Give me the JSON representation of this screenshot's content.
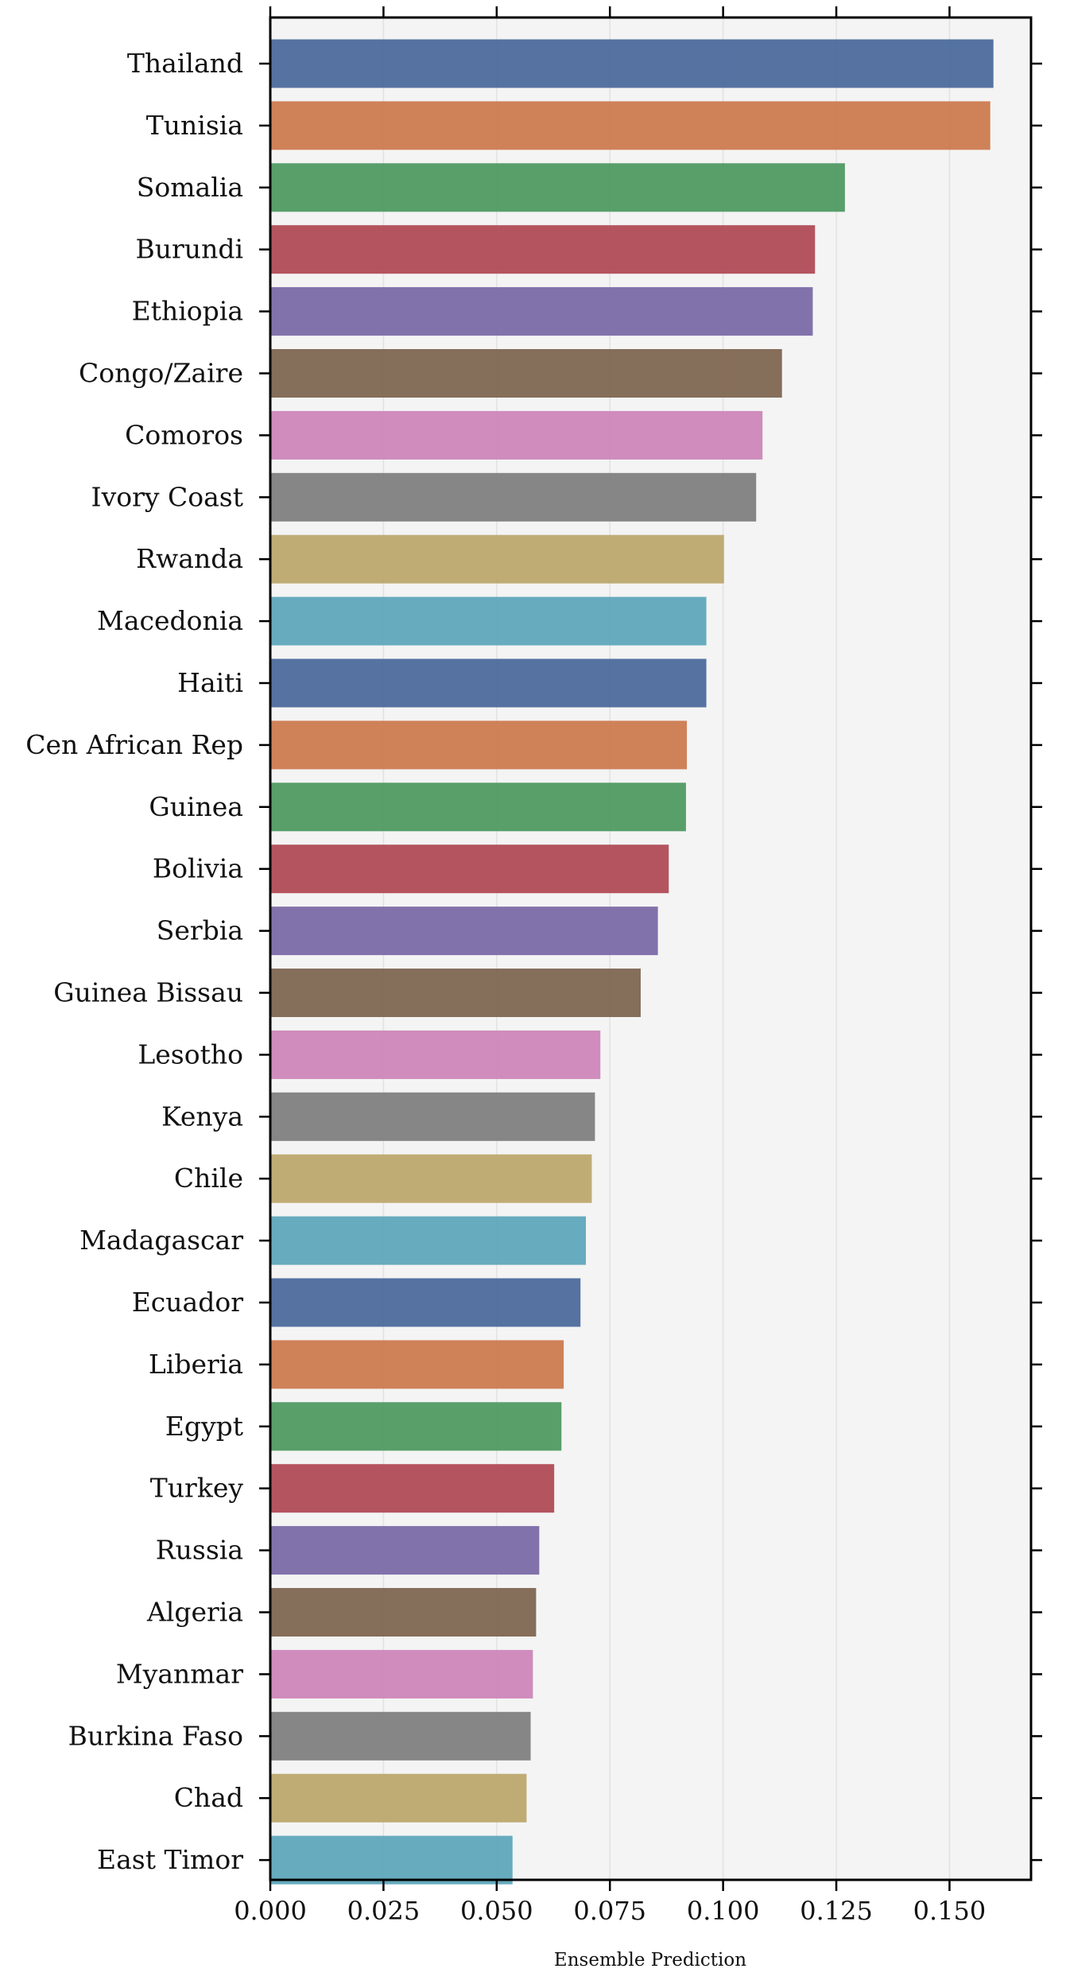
{
  "chart_data": {
    "type": "bar",
    "orientation": "horizontal",
    "title": "",
    "xlabel": "Ensemble Prediction",
    "ylabel": "",
    "xlim": [
      0.0,
      0.168
    ],
    "xticks": [
      "0.000",
      "0.025",
      "0.050",
      "0.075",
      "0.100",
      "0.125",
      "0.150"
    ],
    "xtick_values": [
      0.0,
      0.025,
      0.05,
      0.075,
      0.1,
      0.125,
      0.15
    ],
    "grid": true,
    "legend": "none",
    "palette": [
      "#4c6a9c",
      "#cc7a4f",
      "#4f9a62",
      "#b04b56",
      "#7b6aa6",
      "#7e6651",
      "#cc86b8",
      "#808080",
      "#bca86e",
      "#5fa6bb"
    ],
    "categories": [
      "Thailand",
      "Tunisia",
      "Somalia",
      "Burundi",
      "Ethiopia",
      "Congo/Zaire",
      "Comoros",
      "Ivory Coast",
      "Rwanda",
      "Macedonia",
      "Haiti",
      "Cen African Rep",
      "Guinea",
      "Bolivia",
      "Serbia",
      "Guinea Bissau",
      "Lesotho",
      "Kenya",
      "Chile",
      "Madagascar",
      "Ecuador",
      "Liberia",
      "Egypt",
      "Turkey",
      "Russia",
      "Algeria",
      "Myanmar",
      "Burkina Faso",
      "Chad",
      "East Timor"
    ],
    "values": [
      0.1597,
      0.159,
      0.1269,
      0.1203,
      0.1198,
      0.113,
      0.1087,
      0.1073,
      0.1002,
      0.0963,
      0.0963,
      0.092,
      0.0918,
      0.088,
      0.0856,
      0.0818,
      0.0729,
      0.0717,
      0.071,
      0.0697,
      0.0685,
      0.0648,
      0.0643,
      0.0627,
      0.0594,
      0.0587,
      0.058,
      0.0575,
      0.0566,
      0.0535
    ]
  }
}
